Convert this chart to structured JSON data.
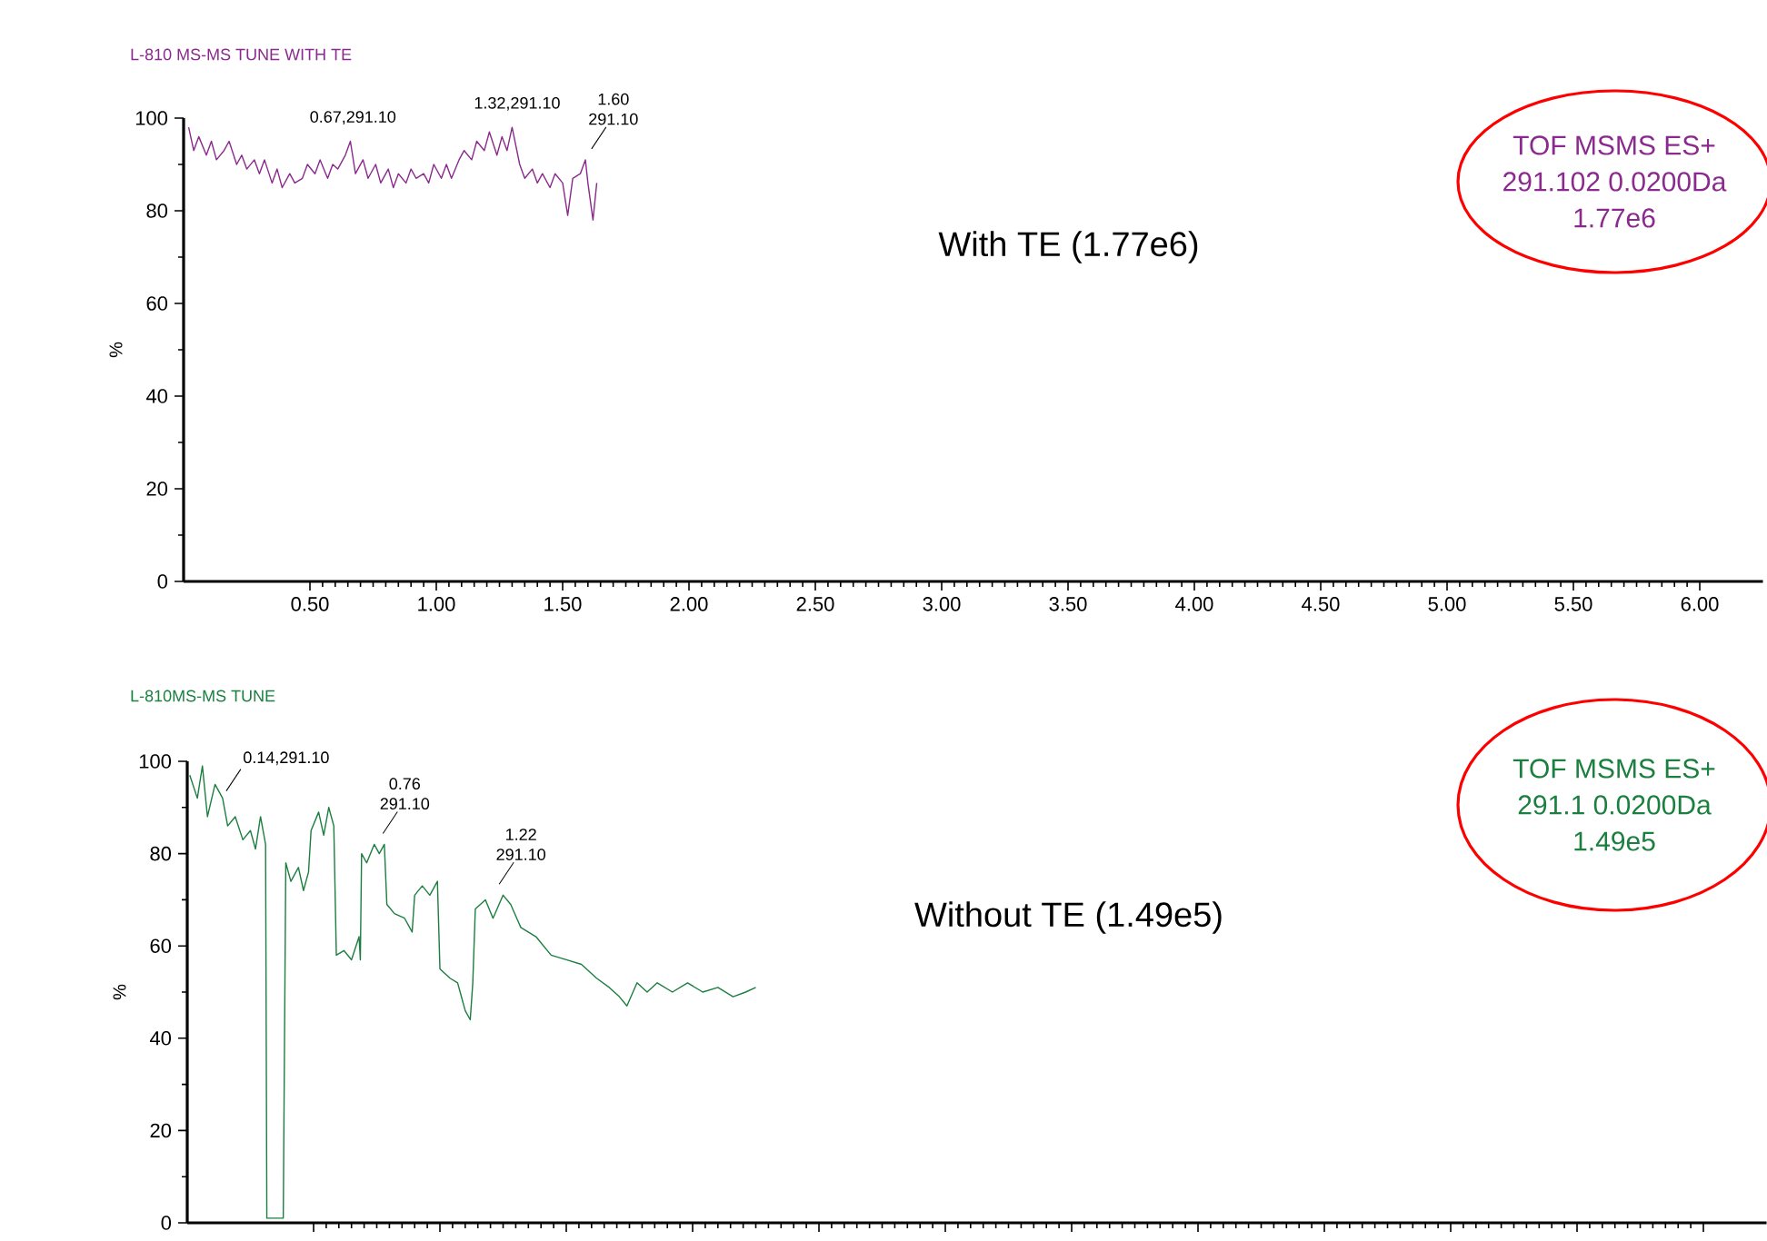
{
  "chart_data": [
    {
      "type": "line",
      "title": "L-810 MS-MS TUNE WITH TE",
      "ylabel": "%",
      "xlim": [
        0,
        6.25
      ],
      "ylim": [
        0,
        100
      ],
      "xticks": [
        {
          "value": 0.5,
          "label": "0.50"
        },
        {
          "value": 1.0,
          "label": "1.00"
        },
        {
          "value": 1.5,
          "label": "1.50"
        },
        {
          "value": 2.0,
          "label": "2.00"
        },
        {
          "value": 2.5,
          "label": "2.50"
        },
        {
          "value": 3.0,
          "label": "3.00"
        },
        {
          "value": 3.5,
          "label": "3.50"
        },
        {
          "value": 4.0,
          "label": "4.00"
        },
        {
          "value": 4.5,
          "label": "4.50"
        },
        {
          "value": 5.0,
          "label": "5.00"
        },
        {
          "value": 5.5,
          "label": "5.50"
        },
        {
          "value": 6.0,
          "label": "6.00"
        }
      ],
      "yticks": [
        0,
        20,
        40,
        60,
        80,
        100
      ],
      "series": [
        {
          "color": "#8b2a8e",
          "x": [
            0.02,
            0.04,
            0.06,
            0.09,
            0.11,
            0.13,
            0.16,
            0.18,
            0.21,
            0.23,
            0.25,
            0.28,
            0.3,
            0.32,
            0.35,
            0.37,
            0.39,
            0.42,
            0.44,
            0.47,
            0.49,
            0.52,
            0.54,
            0.57,
            0.59,
            0.61,
            0.64,
            0.66,
            0.68,
            0.71,
            0.73,
            0.76,
            0.78,
            0.81,
            0.83,
            0.85,
            0.88,
            0.9,
            0.92,
            0.95,
            0.97,
            0.99,
            1.02,
            1.04,
            1.06,
            1.09,
            1.11,
            1.14,
            1.16,
            1.19,
            1.21,
            1.24,
            1.26,
            1.28,
            1.3,
            1.33,
            1.35,
            1.38,
            1.4,
            1.42,
            1.45,
            1.47,
            1.5,
            1.52,
            1.54,
            1.57,
            1.59,
            1.6,
            1.62,
            1.635
          ],
          "values": [
            98,
            93,
            96,
            92,
            95,
            91,
            93,
            95,
            90,
            92,
            89,
            91,
            88,
            91,
            86,
            89,
            85,
            88,
            86,
            87,
            90,
            88,
            91,
            87,
            90,
            89,
            92,
            95,
            88,
            91,
            87,
            90,
            86,
            89,
            85,
            88,
            86,
            89,
            87,
            88,
            86,
            90,
            87,
            90,
            87,
            91,
            93,
            91,
            95,
            93,
            97,
            92,
            96,
            93,
            98,
            90,
            87,
            89,
            86,
            88,
            85,
            88,
            86,
            79,
            87,
            88,
            91,
            86,
            78,
            86
          ]
        }
      ],
      "annotations": [
        {
          "text": "0.67,291.10",
          "x": 0.67,
          "y": 95
        },
        {
          "text": "1.32,291.10",
          "x": 1.32,
          "y": 98
        },
        {
          "text": "1.60 291.10",
          "x": 1.6,
          "y": 91
        },
        "With TE (1.77e6)",
        "TOF MSMS ES+",
        "291.102 0.0200Da",
        "1.77e6"
      ]
    },
    {
      "type": "line",
      "title": "L-810MS-MS TUNE",
      "ylabel": "%",
      "xlim": [
        0,
        6.25
      ],
      "ylim": [
        0,
        100
      ],
      "tick_labels": "y",
      "xticks": [
        {
          "value": 0.5,
          "label": null
        },
        {
          "value": 1.0,
          "label": null
        },
        {
          "value": 1.5,
          "label": null
        },
        {
          "value": 2.0,
          "label": null
        },
        {
          "value": 2.5,
          "label": null
        },
        {
          "value": 3.0,
          "label": null
        },
        {
          "value": 3.5,
          "label": null
        },
        {
          "value": 4.0,
          "label": null
        },
        {
          "value": 4.5,
          "label": null
        },
        {
          "value": 5.0,
          "label": null
        },
        {
          "value": 5.5,
          "label": null
        },
        {
          "value": 6.0,
          "label": null
        }
      ],
      "yticks": [
        0,
        20,
        40,
        60,
        80,
        100
      ],
      "series": [
        {
          "color": "#1b7f3f",
          "x": [
            0.01,
            0.04,
            0.06,
            0.08,
            0.11,
            0.14,
            0.16,
            0.19,
            0.22,
            0.25,
            0.27,
            0.29,
            0.31,
            0.315,
            0.38,
            0.385,
            0.39,
            0.41,
            0.44,
            0.46,
            0.48,
            0.49,
            0.52,
            0.54,
            0.56,
            0.58,
            0.59,
            0.62,
            0.65,
            0.68,
            0.685,
            0.69,
            0.71,
            0.74,
            0.76,
            0.78,
            0.79,
            0.82,
            0.86,
            0.89,
            0.9,
            0.93,
            0.96,
            0.99,
            1.0,
            1.04,
            1.07,
            1.1,
            1.12,
            1.13,
            1.14,
            1.18,
            1.21,
            1.25,
            1.28,
            1.32,
            1.38,
            1.44,
            1.5,
            1.56,
            1.62,
            1.67,
            1.71,
            1.74,
            1.78,
            1.82,
            1.86,
            1.92,
            1.98,
            2.04,
            2.1,
            2.16,
            2.21,
            2.25
          ],
          "values": [
            97,
            92,
            99,
            88,
            95,
            92,
            86,
            88,
            83,
            85,
            81,
            88,
            82,
            1,
            1,
            40,
            78,
            74,
            77,
            72,
            76,
            85,
            89,
            84,
            90,
            86,
            58,
            59,
            57,
            62,
            57,
            80,
            78,
            82,
            80,
            82,
            69,
            67,
            66,
            63,
            71,
            73,
            71,
            74,
            55,
            53,
            52,
            46,
            44,
            52,
            68,
            70,
            66,
            71,
            69,
            64,
            62,
            58,
            57,
            56,
            53,
            51,
            49,
            47,
            52,
            50,
            52,
            50,
            52,
            50,
            51,
            49,
            50,
            51
          ]
        }
      ],
      "annotations": [
        {
          "text": "0.14,291.10",
          "x": 0.14,
          "y": 92
        },
        {
          "text": "0.76 291.10",
          "x": 0.76,
          "y": 82
        },
        {
          "text": "1.22 291.10",
          "x": 1.22,
          "y": 71
        },
        "Without TE (1.49e5)",
        "TOF MSMS ES+",
        "291.1 0.0200Da",
        "1.49e5"
      ]
    }
  ]
}
